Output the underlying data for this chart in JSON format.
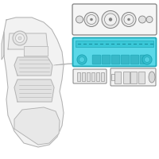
{
  "bg_color": "#ffffff",
  "line_color": "#b0b0b0",
  "dark_line": "#808080",
  "highlight_fill": "#5ad8e8",
  "highlight_edge": "#20a8b8",
  "fig_width": 2.0,
  "fig_height": 2.0,
  "dpi": 100
}
